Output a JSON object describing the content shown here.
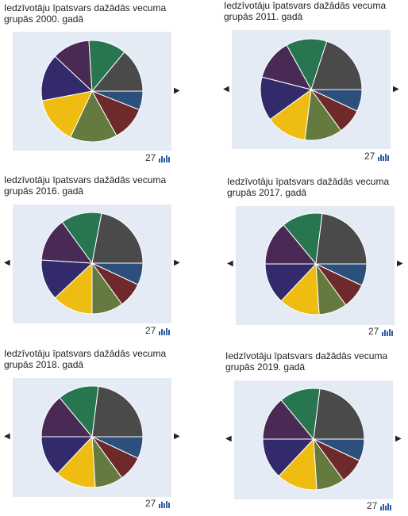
{
  "widgets": [
    {
      "title_line1": "Iedzīvotāju īpatsvars dažādās vecuma",
      "title_line2": "grupās 2000. gadā",
      "count": "27",
      "prev": "",
      "next": "▶"
    },
    {
      "title_line1": "Iedzīvotāju īpatsvars dažādās vecuma",
      "title_line2": "grupās 2011. gadā",
      "count": "27",
      "prev": "◀",
      "next": "▶"
    },
    {
      "title_line1": "Iedzīvotāju īpatsvars dažādās vecuma",
      "title_line2": "grupās 2016. gadā",
      "count": "27",
      "prev": "◀",
      "next": "▶"
    },
    {
      "title_line1": "Iedzīvotāju īpatsvars dažādās vecuma",
      "title_line2": "grupās 2017. gadā",
      "count": "27",
      "prev": "◀",
      "next": "▶"
    },
    {
      "title_line1": "Iedzīvotāju īpatsvars dažādās vecuma",
      "title_line2": "grupās 2018. gadā",
      "count": "27",
      "prev": "◀",
      "next": "▶"
    },
    {
      "title_line1": "Iedzīvotāju īpatsvars dažādās vecuma",
      "title_line2": "grupās 2019. gadā",
      "count": "27",
      "prev": "◀",
      "next": "▶"
    }
  ],
  "colors": {
    "panel_bg": "#e4ebf5",
    "slices": [
      "#2d4f7c",
      "#6e2a2a",
      "#647a3e",
      "#efbd12",
      "#322a6a",
      "#482a54",
      "#287650",
      "#4a4a4a"
    ],
    "icon": "#2f5fa0"
  },
  "chart_data": [
    {
      "type": "pie",
      "title": "Iedzīvotāju īpatsvars dažādās vecuma grupās 2000. gadā",
      "values": [
        6,
        11,
        15,
        15,
        15,
        12,
        12,
        14
      ]
    },
    {
      "type": "pie",
      "title": "Iedzīvotāju īpatsvars dažādās vecuma grupās 2011. gadā",
      "values": [
        7,
        8,
        12,
        13,
        14,
        13,
        13,
        20
      ]
    },
    {
      "type": "pie",
      "title": "Iedzīvotāju īpatsvars dažādās vecuma grupās 2016. gadā",
      "values": [
        7,
        8,
        10,
        13,
        13,
        14,
        13,
        22
      ]
    },
    {
      "type": "pie",
      "title": "Iedzīvotāju īpatsvars dažādās vecuma grupās 2017. gadā",
      "values": [
        7,
        8,
        9,
        13,
        13,
        14,
        13,
        23
      ]
    },
    {
      "type": "pie",
      "title": "Iedzīvotāju īpatsvars dažādās vecuma grupās 2018. gadā",
      "values": [
        7,
        8,
        9,
        13,
        13,
        14,
        13,
        23
      ]
    },
    {
      "type": "pie",
      "title": "Iedzīvotāju īpatsvars dažādās vecuma grupās 2019. gadā",
      "values": [
        7,
        8,
        9,
        13,
        13,
        14,
        13,
        23
      ]
    }
  ]
}
